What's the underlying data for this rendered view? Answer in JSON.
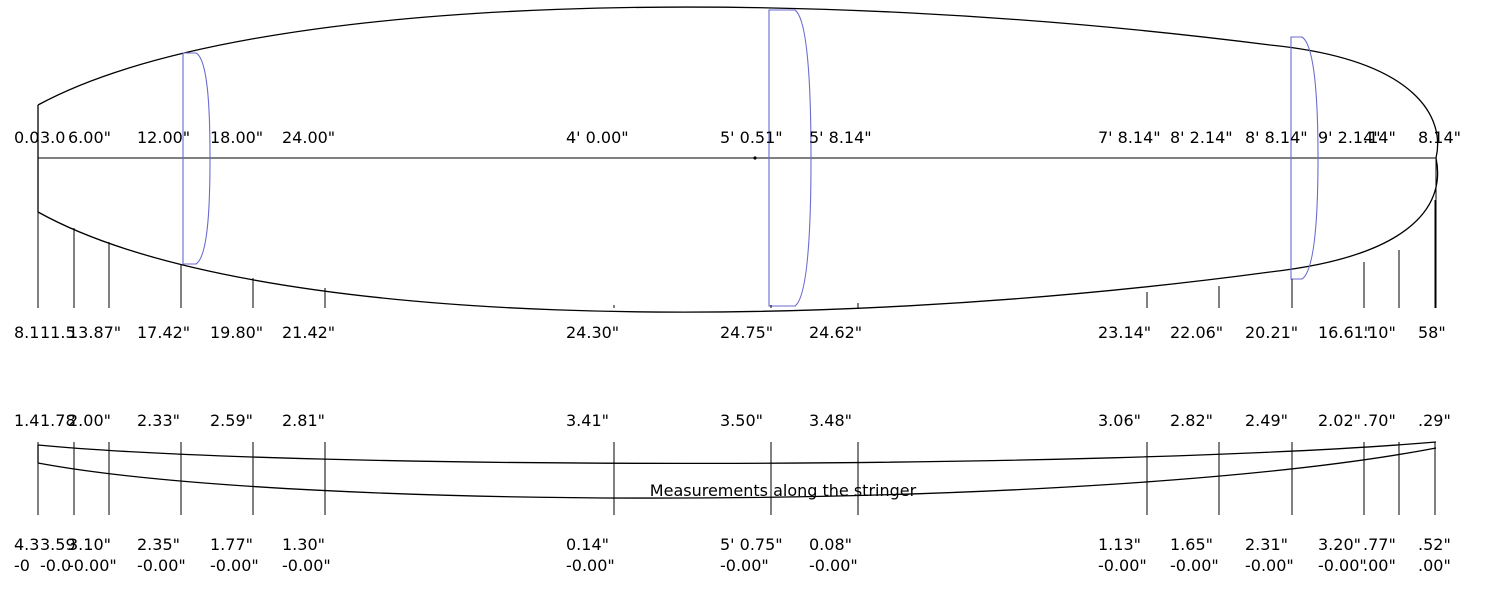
{
  "stations": [
    {
      "x_label": "0.0",
      "width": "8.1",
      "thickness": "1.4",
      "rocker_bottom": "4.3",
      "rocker_bottom_offset": "-0"
    },
    {
      "x_label": "3.0",
      "width": "11.5",
      "thickness": "1.78",
      "rocker_bottom": "3.59",
      "rocker_bottom_offset": "-0.0"
    },
    {
      "x_label": "6.00\"",
      "width": "13.87\"",
      "thickness": "2.00\"",
      "rocker_bottom": "3.10\"",
      "rocker_bottom_offset": "-0.00\""
    },
    {
      "x_label": "12.00\"",
      "width": "17.42\"",
      "thickness": "2.33\"",
      "rocker_bottom": "2.35\"",
      "rocker_bottom_offset": "-0.00\""
    },
    {
      "x_label": "18.00\"",
      "width": "19.80\"",
      "thickness": "2.59\"",
      "rocker_bottom": "1.77\"",
      "rocker_bottom_offset": "-0.00\""
    },
    {
      "x_label": "24.00\"",
      "width": "21.42\"",
      "thickness": "2.81\"",
      "rocker_bottom": "1.30\"",
      "rocker_bottom_offset": "-0.00\""
    },
    {
      "x_label": "4' 0.00\"",
      "width": "24.30\"",
      "thickness": "3.41\"",
      "rocker_bottom": "0.14\"",
      "rocker_bottom_offset": "-0.00\""
    },
    {
      "x_label": "5' 0.51\"",
      "width": "24.75\"",
      "thickness": "3.50\"",
      "rocker_bottom": "5' 0.75\"",
      "rocker_bottom_offset": "-0.00\""
    },
    {
      "x_label": "5' 8.14\"",
      "width": "24.62\"",
      "thickness": "3.48\"",
      "rocker_bottom": "0.08\"",
      "rocker_bottom_offset": "-0.00\""
    },
    {
      "x_label": "7' 8.14\"",
      "width": "23.14\"",
      "thickness": "3.06\"",
      "rocker_bottom": "1.13\"",
      "rocker_bottom_offset": "-0.00\""
    },
    {
      "x_label": "8' 2.14\"",
      "width": "22.06\"",
      "thickness": "2.82\"",
      "rocker_bottom": "1.65\"",
      "rocker_bottom_offset": "-0.00\""
    },
    {
      "x_label": "8' 8.14\"",
      "width": "20.21\"",
      "thickness": "2.49\"",
      "rocker_bottom": "2.31\"",
      "rocker_bottom_offset": "-0.00\""
    },
    {
      "x_label": "9' 2.14\"",
      "width": "16.61\"",
      "thickness": "2.02\"",
      "rocker_bottom": "3.20\"",
      "rocker_bottom_offset": "-0.00\""
    },
    {
      "x_label": ".14\"",
      "width": ".10\"",
      "thickness": ".70\"",
      "rocker_bottom": ".77\"",
      "rocker_bottom_offset": ".00\""
    },
    {
      "x_label": "8.14\"",
      "width": "58\"",
      "thickness": ".29\"",
      "rocker_bottom": ".52\"",
      "rocker_bottom_offset": ".00\""
    }
  ],
  "rocker_caption": "Measurements along the stringer",
  "colors": {
    "outline": "#000000",
    "cross_section": "#6a6ad0"
  }
}
